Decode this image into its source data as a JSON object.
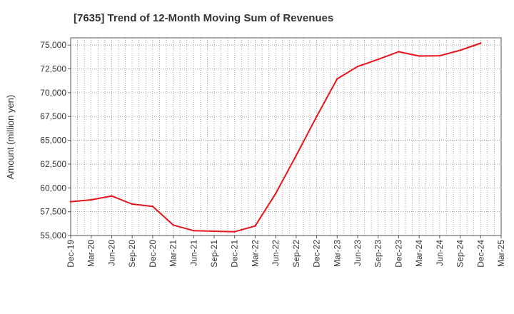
{
  "chart_data": {
    "type": "line",
    "title": "[7635]  Trend of 12-Month Moving Sum of Revenues",
    "ylabel": "Amount (million yen)",
    "xlabel": "",
    "ylim": [
      55000,
      75000
    ],
    "yticks": [
      55000,
      57500,
      60000,
      62500,
      65000,
      67500,
      70000,
      72500,
      75000
    ],
    "ytick_labels": [
      "55,000",
      "57,500",
      "60,000",
      "62,500",
      "65,000",
      "67,500",
      "70,000",
      "72,500",
      "75,000"
    ],
    "categories": [
      "Dec-19",
      "Mar-20",
      "Jun-20",
      "Sep-20",
      "Dec-20",
      "Mar-21",
      "Jun-21",
      "Sep-21",
      "Dec-21",
      "Mar-22",
      "Jun-22",
      "Sep-22",
      "Dec-22",
      "Mar-23",
      "Jun-23",
      "Sep-23",
      "Dec-23",
      "Mar-24",
      "Jun-24",
      "Sep-24",
      "Dec-24",
      "Mar-25"
    ],
    "series": [
      {
        "color": "#e8141b",
        "values": [
          58550,
          58750,
          59150,
          58300,
          58050,
          56100,
          55500,
          55450,
          55400,
          56000,
          59400,
          63400,
          67500,
          71450,
          72750,
          73500,
          74300,
          73850,
          73880,
          74450,
          75200,
          null
        ]
      }
    ],
    "grid": true,
    "legend": "none"
  }
}
